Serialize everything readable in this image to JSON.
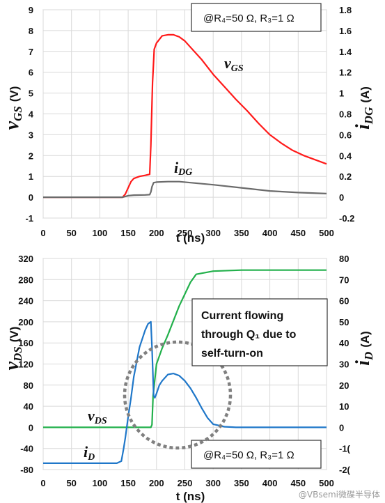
{
  "chart_data": [
    {
      "type": "line",
      "annotation": "@R₄=50 Ω, R₃=1 Ω",
      "xlabel": "t (ns)",
      "xlim": [
        0,
        500
      ],
      "x_ticks": [
        "0",
        "50",
        "100",
        "150",
        "200",
        "250",
        "300",
        "350",
        "400",
        "450",
        "500"
      ],
      "ylabel_left": "ν",
      "ylabel_left_sub": "GS",
      "ylabel_left_unit": "(V)",
      "ylim_left": [
        -1,
        9
      ],
      "y_ticks_left": [
        "-1",
        "0",
        "1",
        "2",
        "3",
        "4",
        "5",
        "6",
        "7",
        "8",
        "9"
      ],
      "ylabel_right": "i",
      "ylabel_right_sub": "DG",
      "ylabel_right_unit": "(A)",
      "ylim_right": [
        -0.2,
        1.8
      ],
      "y_ticks_right": [
        "-0.2",
        "0",
        "0.2",
        "0.4",
        "0.6",
        "0.8",
        "1",
        "1.2",
        "1.4",
        "1.6",
        "1.8"
      ],
      "right_top_tick": "1.8",
      "grid": true,
      "series": [
        {
          "name": "ν",
          "name_sub": "GS",
          "axis": "left",
          "color": "#ff1a1a",
          "x": [
            0,
            140,
            145,
            150,
            155,
            160,
            170,
            180,
            188,
            190,
            193,
            196,
            200,
            210,
            220,
            230,
            240,
            250,
            260,
            280,
            300,
            320,
            340,
            360,
            380,
            400,
            420,
            440,
            460,
            480,
            500
          ],
          "y": [
            0,
            0,
            0.15,
            0.45,
            0.75,
            0.9,
            1.0,
            1.05,
            1.1,
            2.5,
            5.5,
            7.1,
            7.4,
            7.75,
            7.8,
            7.8,
            7.7,
            7.5,
            7.2,
            6.6,
            5.9,
            5.3,
            4.7,
            4.15,
            3.55,
            3.0,
            2.6,
            2.25,
            2.0,
            1.8,
            1.6
          ]
        },
        {
          "name": "i",
          "name_sub": "DG",
          "axis": "right",
          "color": "#6b6b6b",
          "x": [
            0,
            140,
            150,
            160,
            180,
            188,
            190,
            192,
            195,
            200,
            220,
            240,
            260,
            300,
            350,
            400,
            450,
            500
          ],
          "y": [
            0,
            0,
            0.015,
            0.02,
            0.022,
            0.025,
            0.05,
            0.1,
            0.14,
            0.145,
            0.15,
            0.15,
            0.14,
            0.12,
            0.09,
            0.06,
            0.045,
            0.035
          ]
        }
      ]
    },
    {
      "type": "line",
      "annotation": "@R₄=50 Ω, R₃=1 Ω",
      "callout": [
        "Current flowing",
        "through Q₁ due to",
        "self-turn-on"
      ],
      "xlabel": "t (ns)",
      "xlim": [
        0,
        500
      ],
      "x_ticks": [
        "0",
        "50",
        "100",
        "150",
        "200",
        "250",
        "300",
        "350",
        "400",
        "450",
        "500"
      ],
      "ylabel_left": "ν",
      "ylabel_left_sub": "DS",
      "ylabel_left_unit": "(V)",
      "ylim_left": [
        -80,
        320
      ],
      "y_ticks_left": [
        "-80",
        "-40",
        "0",
        "40",
        "80",
        "120",
        "160",
        "200",
        "240",
        "280",
        "320"
      ],
      "ylabel_right": "i",
      "ylabel_right_sub": "D",
      "ylabel_right_unit": "(A)",
      "ylim_right": [
        -20,
        80
      ],
      "y_ticks_right": [
        "-20",
        "-10",
        "0",
        "10",
        "20",
        "30",
        "40",
        "50",
        "60",
        "70",
        "80"
      ],
      "right_tick_display": [
        "-2(",
        "-1(",
        "0",
        "10",
        "20",
        "30",
        "40",
        "50",
        "60",
        "70",
        "80"
      ],
      "grid": true,
      "series": [
        {
          "name": "ν",
          "name_sub": "DS",
          "axis": "left",
          "color": "#22b04b",
          "x": [
            0,
            100,
            150,
            180,
            190,
            192,
            194,
            200,
            210,
            220,
            240,
            260,
            270,
            300,
            350,
            400,
            450,
            500
          ],
          "y": [
            0,
            0,
            0,
            0,
            0,
            5,
            60,
            120,
            150,
            175,
            230,
            275,
            290,
            296,
            298,
            298,
            298,
            298
          ]
        },
        {
          "name": "i",
          "name_sub": "D",
          "axis": "right",
          "color": "#1f77c9",
          "x": [
            0,
            130,
            138,
            142,
            145,
            150,
            155,
            160,
            170,
            180,
            185,
            190,
            192,
            195,
            197,
            200,
            205,
            210,
            220,
            230,
            240,
            250,
            260,
            270,
            280,
            290,
            300,
            320,
            340,
            350,
            400,
            450,
            500
          ],
          "y": [
            -17,
            -17,
            -16,
            -10,
            -5,
            5,
            14,
            24,
            38,
            46,
            49,
            50,
            38,
            15,
            14,
            16,
            20,
            22,
            25,
            25.5,
            24.5,
            22,
            18.5,
            14,
            9,
            4.5,
            1.5,
            0.3,
            0,
            0,
            0,
            0,
            0
          ]
        }
      ]
    }
  ],
  "watermark": "@VBsemi微碟半导体"
}
